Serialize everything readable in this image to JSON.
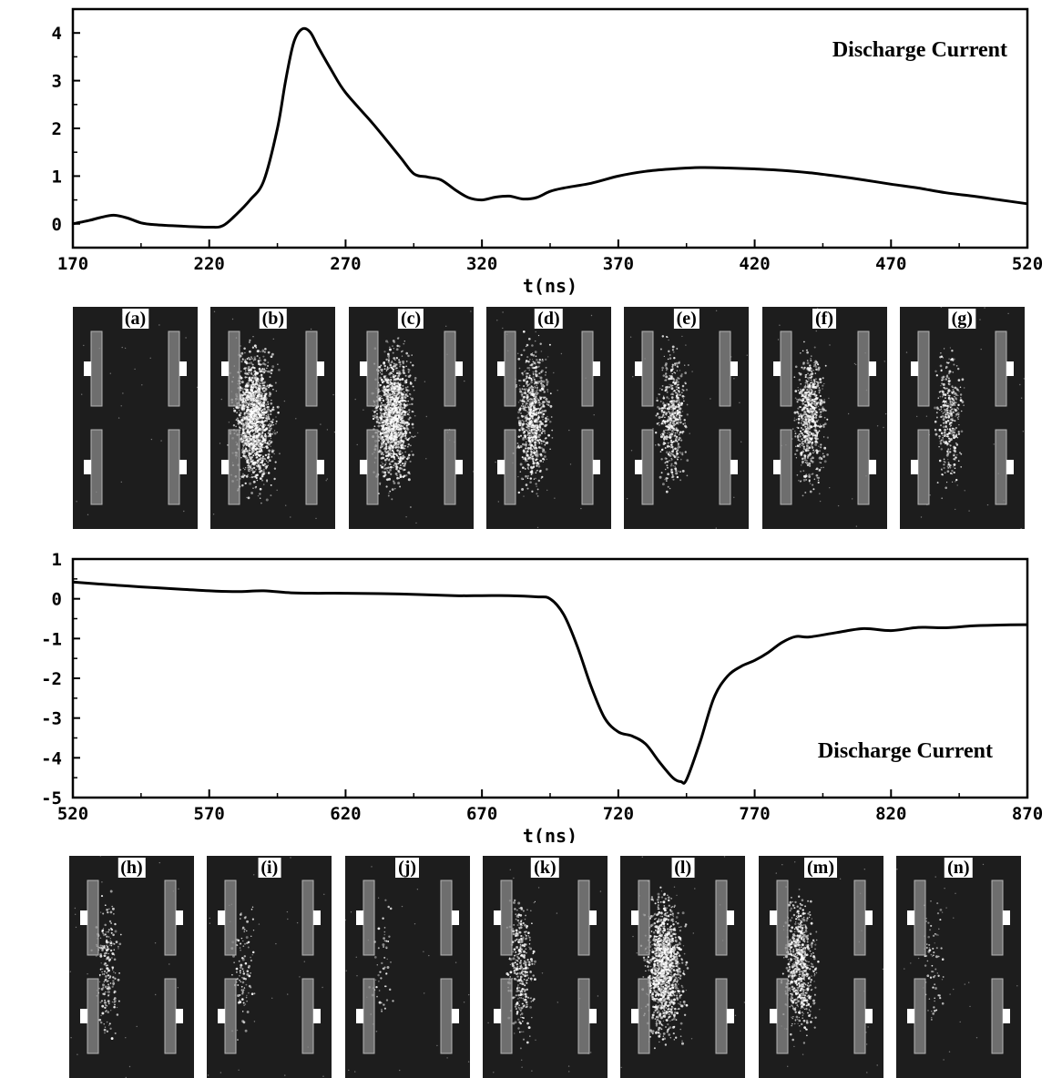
{
  "chart_data": [
    {
      "type": "line",
      "annotation": "Discharge Current",
      "xlabel": "t(ns)",
      "ylabel": "",
      "xlim": [
        170,
        520
      ],
      "ylim": [
        -0.5,
        4.5
      ],
      "xticks": [
        "170",
        "220",
        "270",
        "320",
        "370",
        "420",
        "470",
        "520"
      ],
      "yticks": [
        "0",
        "1",
        "2",
        "3",
        "4"
      ],
      "series": [
        {
          "x": [
            170,
            176,
            180,
            185,
            190,
            195,
            200,
            210,
            220,
            225,
            230,
            235,
            240,
            245,
            248,
            251,
            254,
            257,
            260,
            265,
            270,
            280,
            290,
            295,
            300,
            305,
            310,
            315,
            320,
            325,
            330,
            335,
            340,
            345,
            350,
            360,
            370,
            380,
            390,
            400,
            410,
            420,
            430,
            440,
            450,
            460,
            470,
            480,
            490,
            500,
            510,
            520
          ],
          "y": [
            0.0,
            0.07,
            0.13,
            0.18,
            0.12,
            0.02,
            -0.02,
            -0.05,
            -0.07,
            -0.04,
            0.2,
            0.5,
            0.9,
            2.0,
            3.0,
            3.8,
            4.08,
            4.02,
            3.7,
            3.2,
            2.75,
            2.1,
            1.4,
            1.05,
            0.98,
            0.92,
            0.72,
            0.55,
            0.5,
            0.56,
            0.58,
            0.52,
            0.55,
            0.68,
            0.75,
            0.85,
            1.0,
            1.1,
            1.15,
            1.18,
            1.17,
            1.15,
            1.12,
            1.07,
            1.0,
            0.92,
            0.83,
            0.75,
            0.65,
            0.58,
            0.5,
            0.42
          ]
        }
      ]
    },
    {
      "type": "line",
      "annotation": "Discharge Current",
      "xlabel": "t(ns)",
      "ylabel": "",
      "xlim": [
        520,
        870
      ],
      "ylim": [
        -5,
        1
      ],
      "xticks": [
        "520",
        "570",
        "620",
        "670",
        "720",
        "770",
        "820",
        "870"
      ],
      "yticks": [
        "1",
        "0",
        "-1",
        "-2",
        "-3",
        "-4",
        "-5"
      ],
      "series": [
        {
          "x": [
            520,
            530,
            545,
            560,
            570,
            580,
            590,
            600,
            610,
            620,
            640,
            660,
            670,
            680,
            690,
            695,
            700,
            705,
            710,
            715,
            720,
            725,
            730,
            735,
            740,
            743,
            745,
            750,
            755,
            760,
            765,
            770,
            775,
            780,
            785,
            790,
            800,
            810,
            820,
            830,
            840,
            850,
            860,
            870
          ],
          "y": [
            0.42,
            0.37,
            0.3,
            0.24,
            0.2,
            0.18,
            0.2,
            0.15,
            0.14,
            0.14,
            0.12,
            0.08,
            0.08,
            0.08,
            0.05,
            0.0,
            -0.4,
            -1.2,
            -2.2,
            -3.0,
            -3.35,
            -3.45,
            -3.65,
            -4.1,
            -4.5,
            -4.6,
            -4.55,
            -3.6,
            -2.5,
            -1.95,
            -1.7,
            -1.55,
            -1.35,
            -1.1,
            -0.95,
            -0.96,
            -0.85,
            -0.75,
            -0.8,
            -0.72,
            -0.73,
            -0.68,
            -0.66,
            -0.65
          ]
        }
      ]
    }
  ],
  "panels_top": [
    {
      "label": "(a)",
      "glow": 0.0
    },
    {
      "label": "(b)",
      "glow": 1.0
    },
    {
      "label": "(c)",
      "glow": 0.9
    },
    {
      "label": "(d)",
      "glow": 0.55
    },
    {
      "label": "(e)",
      "glow": 0.35
    },
    {
      "label": "(f)",
      "glow": 0.45
    },
    {
      "label": "(g)",
      "glow": 0.25
    }
  ],
  "panels_bottom": [
    {
      "label": "(h)",
      "glow": 0.15
    },
    {
      "label": "(i)",
      "glow": 0.08
    },
    {
      "label": "(j)",
      "glow": 0.04
    },
    {
      "label": "(k)",
      "glow": 0.25
    },
    {
      "label": "(l)",
      "glow": 0.85
    },
    {
      "label": "(m)",
      "glow": 0.5
    },
    {
      "label": "(n)",
      "glow": 0.05
    }
  ],
  "colors": {
    "curve": "#000000",
    "panel_background": "#1d1d1d",
    "electrode": "#8a8a8a",
    "glow": "#ffffff"
  }
}
